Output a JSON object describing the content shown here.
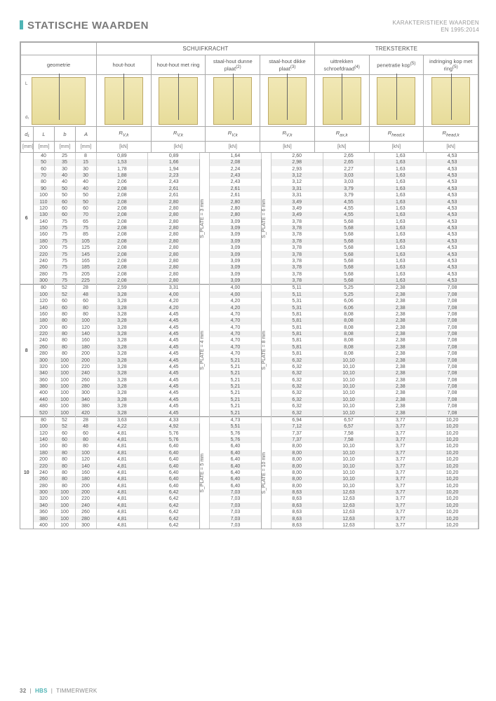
{
  "page": {
    "title": "STATISCHE WAARDEN",
    "subtitleLine1": "KARAKTERISTIEKE WAARDEN",
    "subtitleLine2": "EN 1995:2014"
  },
  "footer": {
    "pageNum": "32",
    "brand": "HBS",
    "text": "TIMMERWERK"
  },
  "groupHeaders": {
    "schuif": "SCHUIFKRACHT",
    "trek": "TREKSTERKTE"
  },
  "colHeaders": {
    "geom": "geometrie",
    "c1": "hout-hout",
    "c2": "hout-hout met ring",
    "c3": "staal-hout dunne plaat",
    "c3sup": "(2)",
    "c4": "staal-hout dikke plaat",
    "c4sup": "(3)",
    "c5": "uittrekken schroefdraad",
    "c5sup": "(4)",
    "c6": "penetratie kop",
    "c6sup": "(5)",
    "c7": "indringing kop met ring",
    "c7sup": "(5)"
  },
  "symRow": {
    "d1": "d₁",
    "L": "L",
    "b": "b",
    "A": "A",
    "Rvk": "R",
    "Rvk_sub": "V,k",
    "Rax": "R",
    "Rax_sub": "ax,k",
    "Rhead": "R",
    "Rhead_sub": "head,k"
  },
  "unitRow": {
    "mm": "[mm]",
    "kN": "[kN]"
  },
  "splate": {
    "s3": "S_PLATE = 3 mm",
    "s6": "S_PLATE = 6 mm",
    "s4": "S_PLATE = 4 mm",
    "s8": "S_PLATE = 8 mm",
    "s5": "S_PLATE = 5 mm",
    "s10": "S_PLATE = 10 mm"
  },
  "blocks": [
    {
      "d1": "6",
      "rows": [
        [
          "40",
          "25",
          "8",
          "0,89",
          "0,89",
          "1,64",
          "2,60",
          "2,65",
          "1,63",
          "4,53"
        ],
        [
          "50",
          "35",
          "15",
          "1,53",
          "1,66",
          "2,08",
          "2,98",
          "2,65",
          "1,63",
          "4,53"
        ],
        [
          "60",
          "30",
          "30",
          "1,78",
          "1,94",
          "2,24",
          "2,93",
          "2,27",
          "1,63",
          "4,53"
        ],
        [
          "70",
          "40",
          "30",
          "1,88",
          "2,23",
          "2,43",
          "3,12",
          "3,03",
          "1,63",
          "4,53"
        ],
        [
          "80",
          "40",
          "40",
          "2,06",
          "2,43",
          "2,43",
          "3,12",
          "3,03",
          "1,63",
          "4,53"
        ],
        [
          "90",
          "50",
          "40",
          "2,08",
          "2,61",
          "2,61",
          "3,31",
          "3,79",
          "1,63",
          "4,53"
        ],
        [
          "100",
          "50",
          "50",
          "2,08",
          "2,61",
          "2,61",
          "3,31",
          "3,79",
          "1,63",
          "4,53"
        ],
        [
          "110",
          "60",
          "50",
          "2,08",
          "2,80",
          "2,80",
          "3,49",
          "4,55",
          "1,63",
          "4,53"
        ],
        [
          "120",
          "60",
          "60",
          "2,08",
          "2,80",
          "2,80",
          "3,49",
          "4,55",
          "1,63",
          "4,53"
        ],
        [
          "130",
          "60",
          "70",
          "2,08",
          "2,80",
          "2,80",
          "3,49",
          "4,55",
          "1,63",
          "4,53"
        ],
        [
          "140",
          "75",
          "65",
          "2,08",
          "2,80",
          "3,09",
          "3,78",
          "5,68",
          "1,63",
          "4,53"
        ],
        [
          "150",
          "75",
          "75",
          "2,08",
          "2,80",
          "3,09",
          "3,78",
          "5,68",
          "1,63",
          "4,53"
        ],
        [
          "160",
          "75",
          "85",
          "2,08",
          "2,80",
          "3,09",
          "3,78",
          "5,68",
          "1,63",
          "4,53"
        ],
        [
          "180",
          "75",
          "105",
          "2,08",
          "2,80",
          "3,09",
          "3,78",
          "5,68",
          "1,63",
          "4,53"
        ],
        [
          "200",
          "75",
          "125",
          "2,08",
          "2,80",
          "3,09",
          "3,78",
          "5,68",
          "1,63",
          "4,53"
        ],
        [
          "220",
          "75",
          "145",
          "2,08",
          "2,80",
          "3,09",
          "3,78",
          "5,68",
          "1,63",
          "4,53"
        ],
        [
          "240",
          "75",
          "165",
          "2,08",
          "2,80",
          "3,09",
          "3,78",
          "5,68",
          "1,63",
          "4,53"
        ],
        [
          "260",
          "75",
          "185",
          "2,08",
          "2,80",
          "3,09",
          "3,78",
          "5,68",
          "1,63",
          "4,53"
        ],
        [
          "280",
          "75",
          "205",
          "2,08",
          "2,80",
          "3,09",
          "3,78",
          "5,68",
          "1,63",
          "4,53"
        ],
        [
          "300",
          "75",
          "225",
          "2,08",
          "2,80",
          "3,09",
          "3,78",
          "5,68",
          "1,63",
          "4,53"
        ]
      ]
    },
    {
      "d1": "8",
      "rows": [
        [
          "80",
          "52",
          "28",
          "2,59",
          "3,31",
          "4,00",
          "5,11",
          "5,25",
          "2,38",
          "7,08"
        ],
        [
          "100",
          "52",
          "48",
          "3,28",
          "4,00",
          "4,00",
          "5,11",
          "5,25",
          "2,38",
          "7,08"
        ],
        [
          "120",
          "60",
          "60",
          "3,28",
          "4,20",
          "4,20",
          "5,31",
          "6,06",
          "2,38",
          "7,08"
        ],
        [
          "140",
          "60",
          "80",
          "3,28",
          "4,20",
          "4,20",
          "5,31",
          "6,06",
          "2,38",
          "7,08"
        ],
        [
          "160",
          "80",
          "80",
          "3,28",
          "4,45",
          "4,70",
          "5,81",
          "8,08",
          "2,38",
          "7,08"
        ],
        [
          "180",
          "80",
          "100",
          "3,28",
          "4,45",
          "4,70",
          "5,81",
          "8,08",
          "2,38",
          "7,08"
        ],
        [
          "200",
          "80",
          "120",
          "3,28",
          "4,45",
          "4,70",
          "5,81",
          "8,08",
          "2,38",
          "7,08"
        ],
        [
          "220",
          "80",
          "140",
          "3,28",
          "4,45",
          "4,70",
          "5,81",
          "8,08",
          "2,38",
          "7,08"
        ],
        [
          "240",
          "80",
          "160",
          "3,28",
          "4,45",
          "4,70",
          "5,81",
          "8,08",
          "2,38",
          "7,08"
        ],
        [
          "260",
          "80",
          "180",
          "3,28",
          "4,45",
          "4,70",
          "5,81",
          "8,08",
          "2,38",
          "7,08"
        ],
        [
          "280",
          "80",
          "200",
          "3,28",
          "4,45",
          "4,70",
          "5,81",
          "8,08",
          "2,38",
          "7,08"
        ],
        [
          "300",
          "100",
          "200",
          "3,28",
          "4,45",
          "5,21",
          "6,32",
          "10,10",
          "2,38",
          "7,08"
        ],
        [
          "320",
          "100",
          "220",
          "3,28",
          "4,45",
          "5,21",
          "6,32",
          "10,10",
          "2,38",
          "7,08"
        ],
        [
          "340",
          "100",
          "240",
          "3,28",
          "4,45",
          "5,21",
          "6,32",
          "10,10",
          "2,38",
          "7,08"
        ],
        [
          "360",
          "100",
          "260",
          "3,28",
          "4,45",
          "5,21",
          "6,32",
          "10,10",
          "2,38",
          "7,08"
        ],
        [
          "380",
          "100",
          "280",
          "3,28",
          "4,45",
          "5,21",
          "6,32",
          "10,10",
          "2,38",
          "7,08"
        ],
        [
          "400",
          "100",
          "300",
          "3,28",
          "4,45",
          "5,21",
          "6,32",
          "10,10",
          "2,38",
          "7,08"
        ],
        [
          "440",
          "100",
          "340",
          "3,28",
          "4,45",
          "5,21",
          "6,32",
          "10,10",
          "2,38",
          "7,08"
        ],
        [
          "480",
          "100",
          "380",
          "3,28",
          "4,45",
          "5,21",
          "6,32",
          "10,10",
          "2,38",
          "7,08"
        ],
        [
          "520",
          "100",
          "420",
          "3,28",
          "4,45",
          "5,21",
          "6,32",
          "10,10",
          "2,38",
          "7,08"
        ]
      ]
    },
    {
      "d1": "10",
      "rows": [
        [
          "80",
          "52",
          "28",
          "3,63",
          "4,33",
          "4,73",
          "6,94",
          "6,57",
          "3,77",
          "10,20"
        ],
        [
          "100",
          "52",
          "48",
          "4,22",
          "4,92",
          "5,51",
          "7,12",
          "6,57",
          "3,77",
          "10,20"
        ],
        [
          "120",
          "60",
          "60",
          "4,81",
          "5,76",
          "5,76",
          "7,37",
          "7,58",
          "3,77",
          "10,20"
        ],
        [
          "140",
          "60",
          "80",
          "4,81",
          "5,76",
          "5,76",
          "7,37",
          "7,58",
          "3,77",
          "10,20"
        ],
        [
          "160",
          "80",
          "80",
          "4,81",
          "6,40",
          "6,40",
          "8,00",
          "10,10",
          "3,77",
          "10,20"
        ],
        [
          "180",
          "80",
          "100",
          "4,81",
          "6,40",
          "6,40",
          "8,00",
          "10,10",
          "3,77",
          "10,20"
        ],
        [
          "200",
          "80",
          "120",
          "4,81",
          "6,40",
          "6,40",
          "8,00",
          "10,10",
          "3,77",
          "10,20"
        ],
        [
          "220",
          "80",
          "140",
          "4,81",
          "6,40",
          "6,40",
          "8,00",
          "10,10",
          "3,77",
          "10,20"
        ],
        [
          "240",
          "80",
          "160",
          "4,81",
          "6,40",
          "6,40",
          "8,00",
          "10,10",
          "3,77",
          "10,20"
        ],
        [
          "260",
          "80",
          "180",
          "4,81",
          "6,40",
          "6,40",
          "8,00",
          "10,10",
          "3,77",
          "10,20"
        ],
        [
          "280",
          "80",
          "200",
          "4,81",
          "6,40",
          "6,40",
          "8,00",
          "10,10",
          "3,77",
          "10,20"
        ],
        [
          "300",
          "100",
          "200",
          "4,81",
          "6,42",
          "7,03",
          "8,63",
          "12,63",
          "3,77",
          "10,20"
        ],
        [
          "320",
          "100",
          "220",
          "4,81",
          "6,42",
          "7,03",
          "8,63",
          "12,63",
          "3,77",
          "10,20"
        ],
        [
          "340",
          "100",
          "240",
          "4,81",
          "6,42",
          "7,03",
          "8,63",
          "12,63",
          "3,77",
          "10,20"
        ],
        [
          "360",
          "100",
          "260",
          "4,81",
          "6,42",
          "7,03",
          "8,63",
          "12,63",
          "3,77",
          "10,20"
        ],
        [
          "380",
          "100",
          "280",
          "4,81",
          "6,42",
          "7,03",
          "8,63",
          "12,63",
          "3,77",
          "10,20"
        ],
        [
          "400",
          "100",
          "300",
          "4,81",
          "6,42",
          "7,03",
          "8,63",
          "12,63",
          "3,77",
          "10,20"
        ]
      ]
    }
  ],
  "colWidths": {
    "d1": 18,
    "geom": 30,
    "rvk": 72,
    "thin": 86
  },
  "styling": {
    "zebra_odd": "#f0f0f0",
    "zebra_even": "#ffffff",
    "border": "#aaaaaa",
    "font_row": 7,
    "font_header": 8
  }
}
